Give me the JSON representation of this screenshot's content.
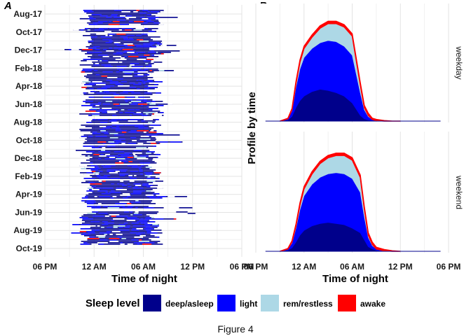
{
  "caption": "Figure 4",
  "legend": {
    "title": "Sleep level",
    "items": [
      {
        "label": "deep/asleep",
        "color": "#00008b"
      },
      {
        "label": "light",
        "color": "#0000ff"
      },
      {
        "label": "rem/restless",
        "color": "#add8e6"
      },
      {
        "label": "awake",
        "color": "#ff0000"
      }
    ]
  },
  "chart_data": [
    {
      "panel": "A",
      "type": "bar",
      "orientation": "horizontal-timeline",
      "xlabel": "Time of night",
      "ylabel": "",
      "x_ticks": [
        "06 PM",
        "12 AM",
        "06 AM",
        "12 PM",
        "06 PM"
      ],
      "xlim_hours_since_6pm": [
        0,
        24
      ],
      "y_ticks": [
        "Aug-17",
        "Oct-17",
        "Dec-17",
        "Feb-18",
        "Apr-18",
        "Jun-18",
        "Aug-18",
        "Oct-18",
        "Dec-18",
        "Feb-19",
        "Apr-19",
        "Jun-19",
        "Aug-19",
        "Oct-19"
      ],
      "series_names": [
        "deep/asleep",
        "light",
        "rem/restless",
        "awake"
      ],
      "typical_sleep_window": {
        "start": "11:30 PM",
        "end": "07:30 AM"
      },
      "grid": true
    },
    {
      "panel": "B",
      "type": "area",
      "stacked": true,
      "xlabel": "Time of night",
      "ylabel": "Profile by time",
      "x_ticks": [
        "06 PM",
        "12 AM",
        "06 AM",
        "12 PM",
        "06 PM"
      ],
      "facets": [
        "weekday",
        "weekend"
      ],
      "x_hours_since_6pm": [
        3,
        4,
        4.5,
        5,
        5.5,
        6,
        7,
        8,
        9,
        10,
        11,
        12,
        13,
        13.5,
        14,
        14.5,
        15,
        16,
        17,
        18
      ],
      "series": [
        {
          "facet": "weekday",
          "values": {
            "deep/asleep": [
              0,
              0.01,
              0.04,
              0.12,
              0.18,
              0.22,
              0.26,
              0.28,
              0.27,
              0.25,
              0.22,
              0.16,
              0.05,
              0.02,
              0.01,
              0.005,
              0,
              0,
              0,
              0
            ],
            "light": [
              0,
              0.01,
              0.05,
              0.18,
              0.28,
              0.34,
              0.38,
              0.41,
              0.44,
              0.45,
              0.44,
              0.42,
              0.2,
              0.08,
              0.03,
              0.01,
              0.005,
              0,
              0,
              0
            ],
            "rem/restless": [
              0,
              0,
              0.01,
              0.03,
              0.06,
              0.08,
              0.1,
              0.13,
              0.15,
              0.16,
              0.17,
              0.17,
              0.07,
              0.02,
              0.01,
              0,
              0,
              0,
              0,
              0
            ],
            "awake": [
              0,
              0.005,
              0.01,
              0.02,
              0.02,
              0.02,
              0.02,
              0.02,
              0.02,
              0.02,
              0.02,
              0.02,
              0.02,
              0.02,
              0.02,
              0.01,
              0.01,
              0.005,
              0,
              0
            ]
          }
        },
        {
          "facet": "weekend",
          "values": {
            "deep/asleep": [
              0,
              0.01,
              0.03,
              0.08,
              0.14,
              0.18,
              0.22,
              0.24,
              0.25,
              0.24,
              0.23,
              0.2,
              0.16,
              0.1,
              0.04,
              0.02,
              0.01,
              0,
              0,
              0
            ],
            "light": [
              0,
              0.01,
              0.04,
              0.12,
              0.22,
              0.3,
              0.36,
              0.4,
              0.42,
              0.44,
              0.44,
              0.43,
              0.35,
              0.2,
              0.08,
              0.03,
              0.01,
              0.005,
              0,
              0
            ],
            "rem/restless": [
              0,
              0,
              0.01,
              0.02,
              0.04,
              0.06,
              0.09,
              0.12,
              0.14,
              0.15,
              0.16,
              0.16,
              0.13,
              0.07,
              0.02,
              0.01,
              0,
              0,
              0,
              0
            ],
            "awake": [
              0,
              0.005,
              0.01,
              0.015,
              0.02,
              0.02,
              0.02,
              0.02,
              0.02,
              0.02,
              0.02,
              0.02,
              0.02,
              0.02,
              0.02,
              0.02,
              0.015,
              0.01,
              0.005,
              0
            ]
          }
        }
      ],
      "grid": true
    }
  ]
}
